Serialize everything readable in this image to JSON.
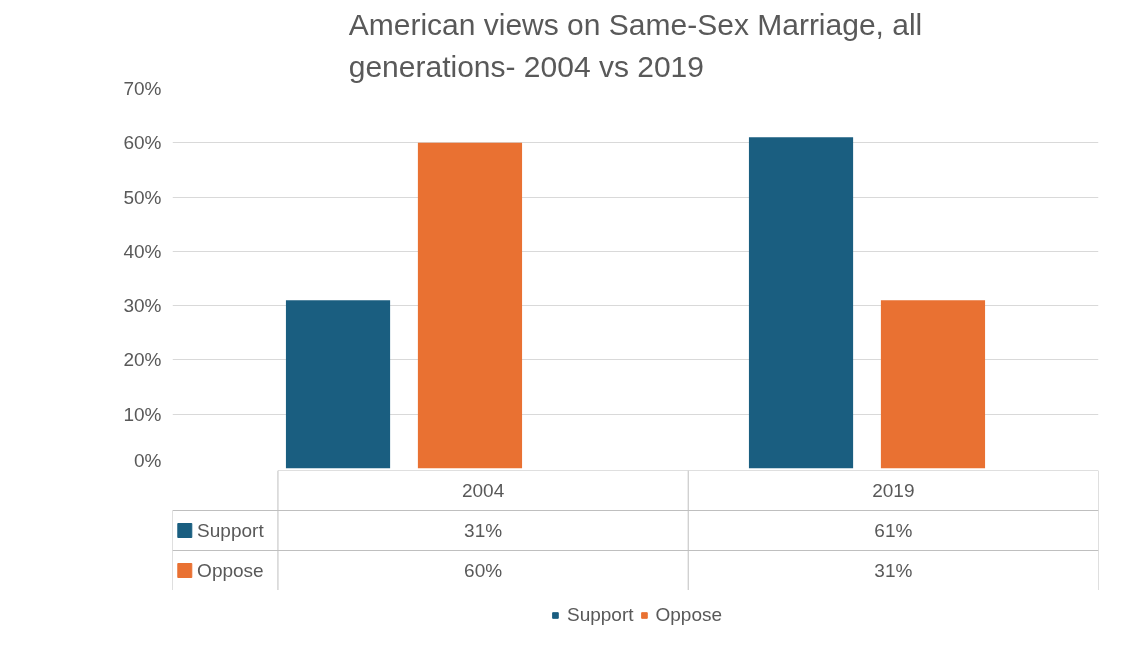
{
  "chart_data": {
    "type": "bar",
    "title": "American views on Same-Sex Marriage, all generations- 2004 vs 2019",
    "categories": [
      "2004",
      "2019"
    ],
    "series": [
      {
        "name": "Support",
        "color": "#1a5e80",
        "values": [
          31,
          61
        ],
        "value_labels": [
          "31%",
          "61%"
        ]
      },
      {
        "name": "Oppose",
        "color": "#e97132",
        "values": [
          60,
          31
        ],
        "value_labels": [
          "60%",
          "31%"
        ]
      }
    ],
    "ylim": [
      0,
      70
    ],
    "yticks": [
      {
        "value": 0,
        "label": "0%"
      },
      {
        "value": 10,
        "label": "10%"
      },
      {
        "value": 20,
        "label": "20%"
      },
      {
        "value": 30,
        "label": "30%"
      },
      {
        "value": 40,
        "label": "40%"
      },
      {
        "value": 50,
        "label": "50%"
      },
      {
        "value": 60,
        "label": "60%"
      },
      {
        "value": 70,
        "label": "70%"
      }
    ],
    "grid": "y",
    "legend": "bottom",
    "tick_labels": "y"
  }
}
